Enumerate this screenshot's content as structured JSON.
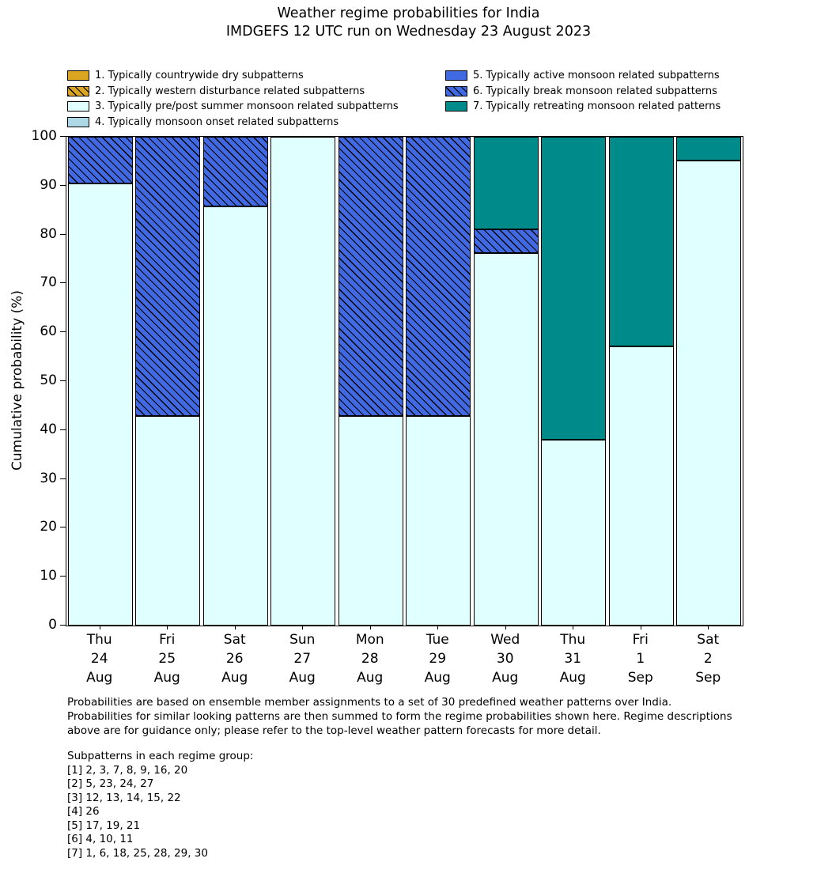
{
  "title": {
    "line1": "Weather regime probabilities for India",
    "line2": "IMDGEFS 12 UTC run on Wednesday 23 August 2023"
  },
  "chart_data": {
    "type": "bar",
    "stacked": true,
    "title": "Weather regime probabilities for India — IMDGEFS 12 UTC run on Wednesday 23 August 2023",
    "xlabel": "",
    "ylabel": "Cumulative probability (%)",
    "ylim": [
      0,
      100
    ],
    "yticks": [
      0,
      10,
      20,
      30,
      40,
      50,
      60,
      70,
      80,
      90,
      100
    ],
    "grid": false,
    "legend_position": "above plot, two columns",
    "legend_columns": [
      4,
      3
    ],
    "categories": [
      [
        "Thu",
        "24",
        "Aug"
      ],
      [
        "Fri",
        "25",
        "Aug"
      ],
      [
        "Sat",
        "26",
        "Aug"
      ],
      [
        "Sun",
        "27",
        "Aug"
      ],
      [
        "Mon",
        "28",
        "Aug"
      ],
      [
        "Tue",
        "29",
        "Aug"
      ],
      [
        "Wed",
        "30",
        "Aug"
      ],
      [
        "Thu",
        "31",
        "Aug"
      ],
      [
        "Fri",
        "1",
        "Sep"
      ],
      [
        "Sat",
        "2",
        "Sep"
      ]
    ],
    "series": [
      {
        "name": "1. Typically countrywide dry subpatterns",
        "color": "#DAA520",
        "hatch": false,
        "values": [
          0,
          0,
          0,
          0,
          0,
          0,
          0,
          0,
          0,
          0
        ]
      },
      {
        "name": "2. Typically western disturbance related subpatterns",
        "color": "#DAA520",
        "hatch": true,
        "values": [
          0,
          0,
          0,
          0,
          0,
          0,
          0,
          0,
          0,
          0
        ]
      },
      {
        "name": "3. Typically pre/post summer monsoon related subpatterns",
        "color": "#E0FFFF",
        "hatch": false,
        "values": [
          90.5,
          42.9,
          85.7,
          100,
          42.9,
          42.9,
          76.2,
          38.1,
          57.1,
          95.2
        ]
      },
      {
        "name": "4. Typically monsoon onset related subpatterns",
        "color": "#ADD8E6",
        "hatch": false,
        "values": [
          0,
          0,
          0,
          0,
          0,
          0,
          0,
          0,
          0,
          0
        ]
      },
      {
        "name": "5. Typically active monsoon related subpatterns",
        "color": "#4169E1",
        "hatch": false,
        "values": [
          0,
          0,
          0,
          0,
          0,
          0,
          0,
          0,
          0,
          0
        ]
      },
      {
        "name": "6. Typically break monsoon related subpatterns",
        "color": "#4169E1",
        "hatch": true,
        "values": [
          9.5,
          57.1,
          14.3,
          0,
          57.1,
          57.1,
          4.8,
          0,
          0,
          0
        ]
      },
      {
        "name": "7. Typically retreating monsoon related patterns",
        "color": "#008B8B",
        "hatch": false,
        "values": [
          0,
          0,
          0,
          0,
          0,
          0,
          19.0,
          61.9,
          42.9,
          4.8
        ]
      }
    ]
  },
  "footnotes": {
    "paragraph": "Probabilities are based on ensemble member assignments to a set of 30 predefined weather patterns over India. Probabilities for similar looking patterns are then summed to form the regime probabilities shown here. Regime descriptions above are for guidance only; please refer to the top-level weather pattern forecasts for more detail.",
    "subpatterns_heading": "Subpatterns in each regime group:",
    "subpatterns": [
      "[1] 2, 3, 7, 8, 9, 16, 20",
      "[2] 5, 23, 24, 27",
      "[3] 12, 13, 14, 15, 22",
      "[4] 26",
      "[5] 17, 19, 21",
      "[6] 4, 10, 11",
      "[7] 1, 6, 18, 25, 28, 29, 30"
    ]
  }
}
